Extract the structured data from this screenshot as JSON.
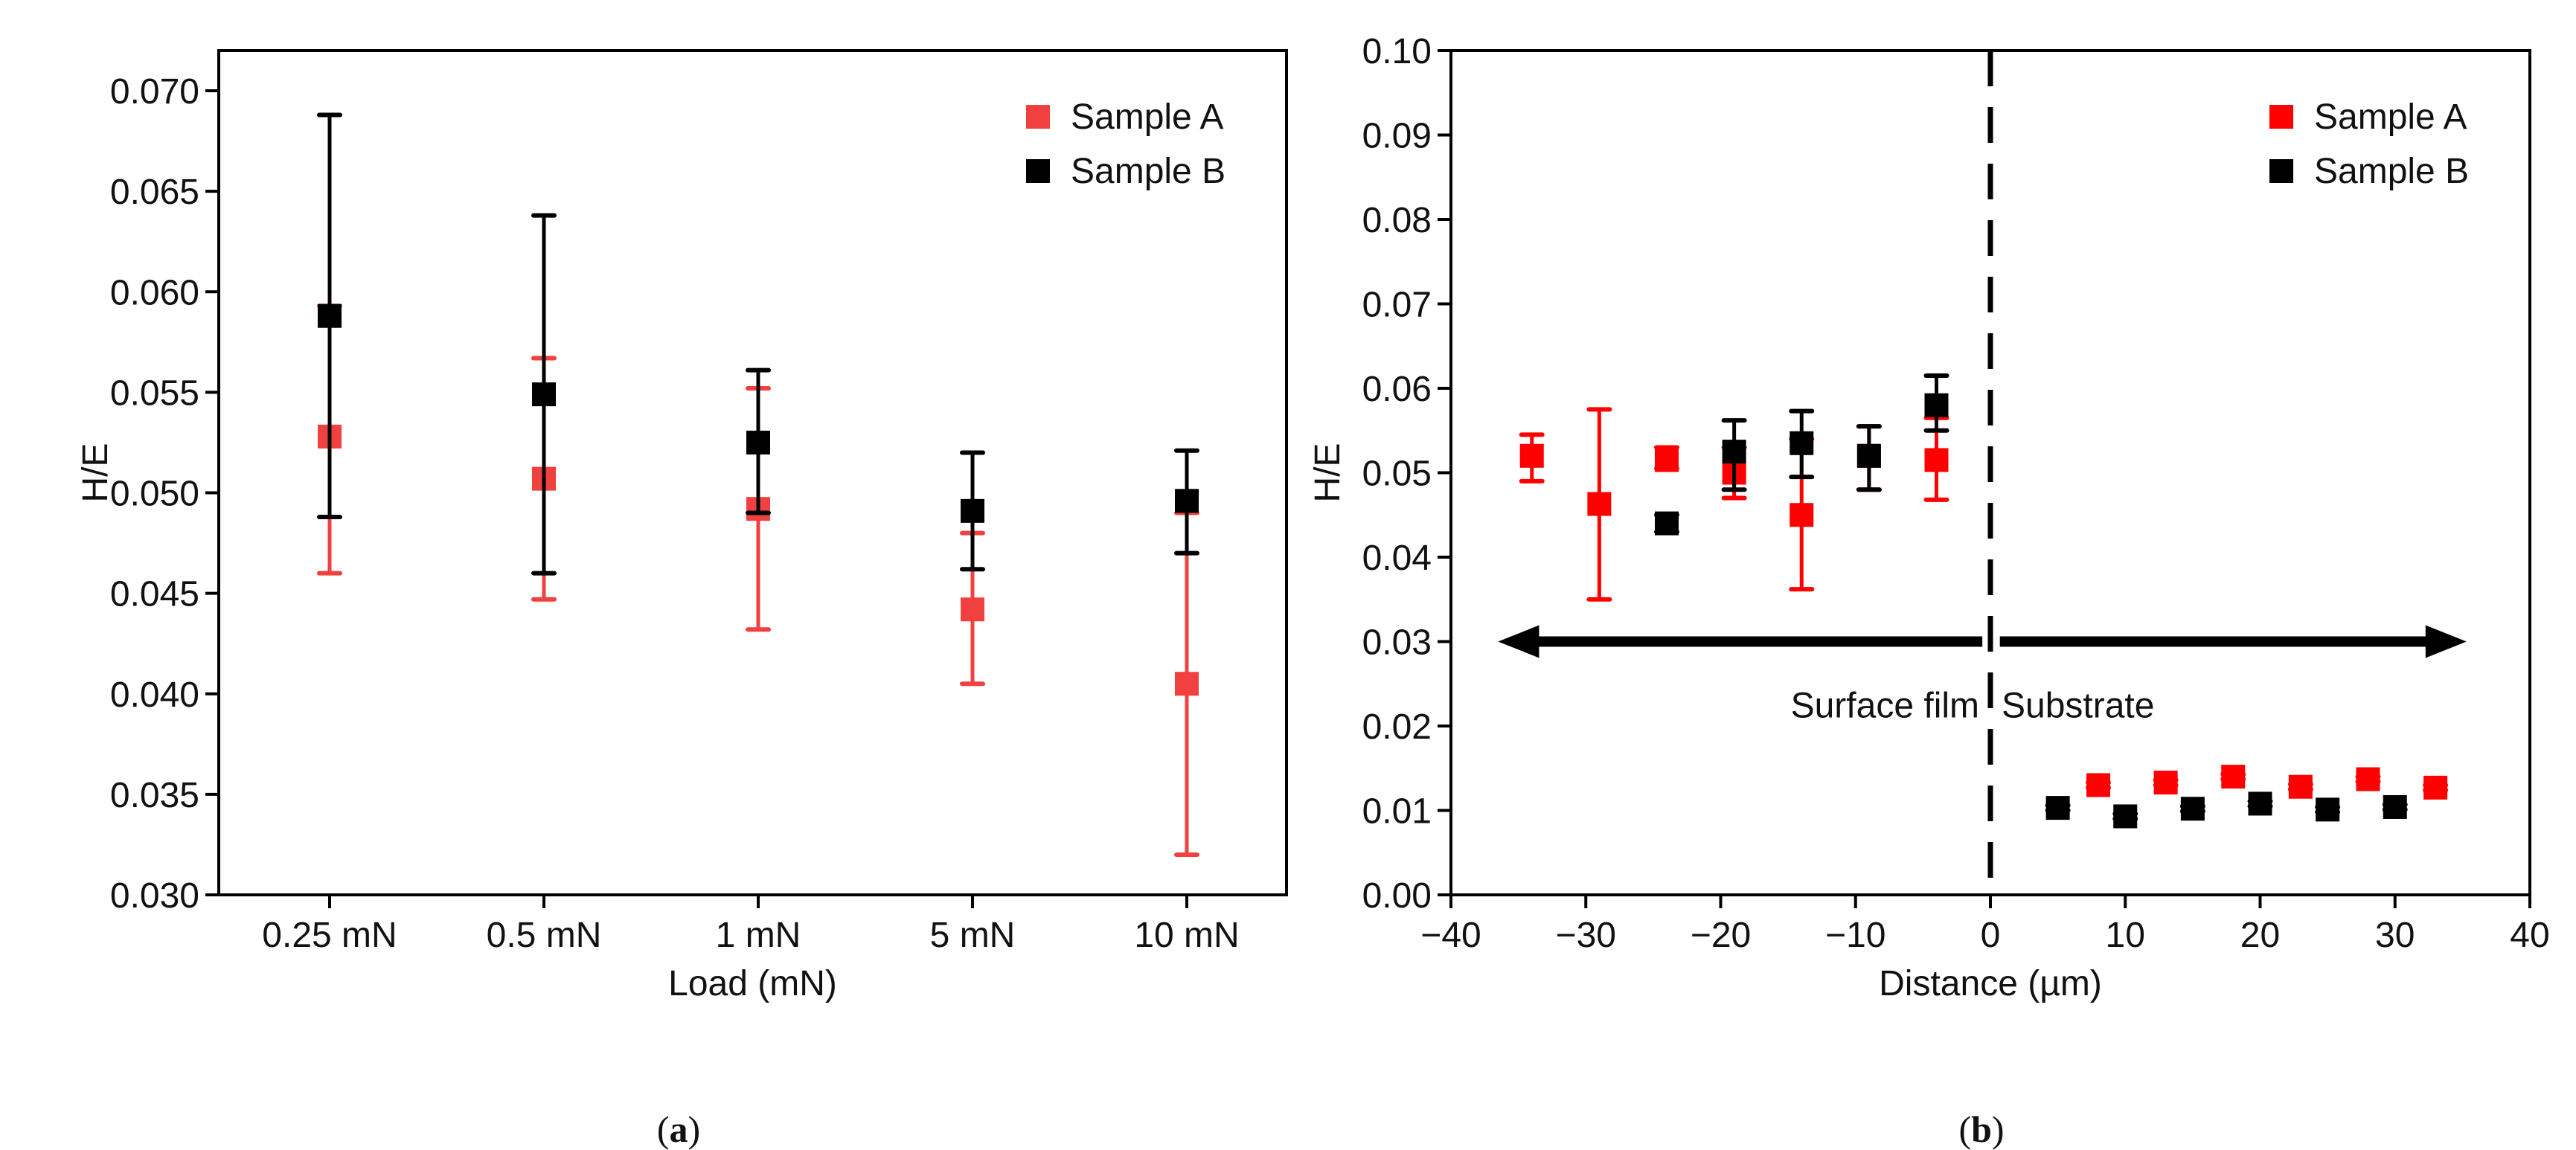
{
  "colors": {
    "sample_a": "#ff0000",
    "sample_a_panel_a": "#f04040",
    "sample_b": "#000000"
  },
  "chart_data": [
    {
      "type": "scatter",
      "panel_label": "a",
      "xlabel": "Load (mN)",
      "ylabel": "H/E",
      "categories": [
        "0.25 mN",
        "0.5 mN",
        "1 mN",
        "5 mN",
        "10 mN"
      ],
      "ylim": [
        0.03,
        0.072
      ],
      "yticks": [
        "0.030",
        "0.035",
        "0.040",
        "0.045",
        "0.050",
        "0.055",
        "0.060",
        "0.065",
        "0.070"
      ],
      "legend": {
        "placement": "top-right",
        "entries": [
          "Sample A",
          "Sample B"
        ]
      },
      "series": [
        {
          "name": "Sample A",
          "values": [
            0.0528,
            0.0507,
            0.0492,
            0.0442,
            0.0405
          ],
          "err_low": [
            0.046,
            0.0447,
            0.0432,
            0.0405,
            0.032
          ],
          "err_high": [
            0.0593,
            0.0567,
            0.0552,
            0.048,
            0.049
          ]
        },
        {
          "name": "Sample B",
          "values": [
            0.0588,
            0.0549,
            0.0525,
            0.0491,
            0.0496
          ],
          "err_low": [
            0.0488,
            0.046,
            0.049,
            0.0462,
            0.047
          ],
          "err_high": [
            0.0688,
            0.0638,
            0.0561,
            0.052,
            0.0521
          ]
        }
      ]
    },
    {
      "type": "scatter",
      "panel_label": "b",
      "xlabel": "Distance (µm)",
      "ylabel": "H/E",
      "xlim": [
        -40,
        40
      ],
      "ylim": [
        0,
        0.1
      ],
      "xticks": [
        "−40",
        "−30",
        "−20",
        "−10",
        "0",
        "10",
        "20",
        "30",
        "40"
      ],
      "yticks": [
        "0.00",
        "0.01",
        "0.02",
        "0.03",
        "0.04",
        "0.05",
        "0.06",
        "0.07",
        "0.08",
        "0.09",
        "0.10"
      ],
      "legend": {
        "placement": "top-right",
        "entries": [
          "Sample A",
          "Sample B"
        ]
      },
      "annotations": {
        "left_region": "Surface film",
        "right_region": "Substrate",
        "boundary_x": 0,
        "arrow_y": 0.03
      },
      "series": [
        {
          "name": "Sample A",
          "x": [
            -34,
            -29,
            -24,
            -19,
            -14,
            -9,
            -4,
            8,
            13,
            18,
            23,
            28,
            33
          ],
          "y": [
            0.052,
            0.0463,
            0.0515,
            0.05,
            0.045,
            0.052,
            0.0515,
            0.013,
            0.0133,
            0.014,
            0.0128,
            0.0137,
            0.0127
          ],
          "err_low": [
            0.049,
            0.035,
            0.0505,
            0.047,
            0.0362,
            0.048,
            0.0468,
            0.0127,
            0.013,
            0.0137,
            0.0125,
            0.0134,
            0.0124
          ],
          "err_high": [
            0.0545,
            0.0575,
            0.053,
            0.053,
            0.054,
            0.0555,
            0.0565,
            0.0133,
            0.0136,
            0.0143,
            0.0131,
            0.014,
            0.013
          ]
        },
        {
          "name": "Sample B",
          "x": [
            -24,
            -19,
            -14,
            -9,
            -4,
            5,
            10,
            15,
            20,
            25,
            30
          ],
          "y": [
            0.044,
            0.0525,
            0.0535,
            0.052,
            0.058,
            0.0103,
            0.0093,
            0.0102,
            0.0108,
            0.0101,
            0.0104
          ],
          "err_low": [
            0.043,
            0.048,
            0.0495,
            0.048,
            0.055,
            0.01,
            0.009,
            0.0099,
            0.0105,
            0.0098,
            0.0101
          ],
          "err_high": [
            0.045,
            0.0562,
            0.0573,
            0.0555,
            0.0615,
            0.0106,
            0.0096,
            0.0105,
            0.0111,
            0.0104,
            0.0107
          ]
        }
      ]
    }
  ]
}
